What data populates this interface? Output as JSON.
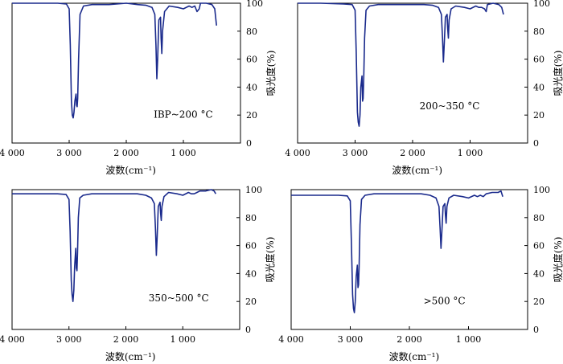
{
  "chart_data": [
    {
      "type": "line",
      "annotation": "IBP~200 °C",
      "xlabel": "波数(cm⁻¹)",
      "ylabel": "吸光度(%)",
      "xlim": [
        4000,
        0
      ],
      "ylim": [
        0,
        100
      ],
      "x_ticks": [
        "4 000",
        "3 000",
        "2 000",
        "1 000"
      ],
      "y_ticks": [
        "0",
        "20",
        "40",
        "60",
        "80",
        "100"
      ],
      "grid": false,
      "color": "#1a2a8c",
      "series": [
        {
          "x": [
            4000,
            3600,
            3200,
            3050,
            3000,
            2980,
            2960,
            2945,
            2930,
            2915,
            2900,
            2880,
            2870,
            2860,
            2850,
            2835,
            2810,
            2750,
            2600,
            2300,
            2000,
            1800,
            1650,
            1550,
            1500,
            1480,
            1465,
            1450,
            1430,
            1400,
            1390,
            1378,
            1365,
            1330,
            1250,
            1100,
            1000,
            900,
            850,
            800,
            760,
            723,
            700,
            600,
            500,
            450,
            420
          ],
          "y": [
            100,
            100,
            100,
            99.5,
            96,
            70,
            30,
            20,
            18,
            22,
            30,
            35,
            27,
            26,
            32,
            60,
            92,
            98,
            99,
            99,
            100,
            99,
            98.5,
            97,
            92,
            70,
            46,
            60,
            88,
            90,
            75,
            64,
            80,
            94,
            98,
            97,
            96,
            98,
            97,
            98,
            94,
            96,
            100,
            100,
            99,
            96,
            84
          ]
        }
      ]
    },
    {
      "type": "line",
      "annotation": "200~350 °C",
      "xlabel": "波数(cm⁻¹)",
      "ylabel": "吸光度(%)",
      "xlim": [
        4000,
        0
      ],
      "ylim": [
        0,
        100
      ],
      "x_ticks": [
        "4 000",
        "3 000",
        "2 000",
        "1 000"
      ],
      "y_ticks": [
        "0",
        "20",
        "40",
        "60",
        "80",
        "100"
      ],
      "grid": false,
      "color": "#1a2a8c",
      "series": [
        {
          "x": [
            4000,
            3600,
            3200,
            3050,
            3000,
            2980,
            2960,
            2945,
            2930,
            2915,
            2900,
            2880,
            2870,
            2860,
            2850,
            2835,
            2810,
            2750,
            2600,
            2300,
            2000,
            1800,
            1650,
            1550,
            1500,
            1480,
            1465,
            1450,
            1430,
            1400,
            1390,
            1378,
            1365,
            1330,
            1250,
            1100,
            1000,
            900,
            850,
            800,
            750,
            720,
            700,
            600,
            500,
            450,
            420
          ],
          "y": [
            100,
            100,
            99.5,
            99,
            95,
            65,
            22,
            15,
            12,
            20,
            40,
            48,
            30,
            32,
            45,
            75,
            95,
            98,
            99,
            99,
            99,
            99,
            98.5,
            97,
            92,
            75,
            58,
            70,
            90,
            92,
            82,
            75,
            88,
            96,
            98,
            97,
            96,
            98,
            97,
            97,
            96,
            94,
            99,
            100,
            99,
            97,
            92
          ]
        }
      ]
    },
    {
      "type": "line",
      "annotation": "350~500 °C",
      "xlabel": "波数(cm⁻¹)",
      "ylabel": "吸光度(%)",
      "xlim": [
        4000,
        0
      ],
      "ylim": [
        0,
        100
      ],
      "x_ticks": [
        "4 000",
        "3 000",
        "2 000",
        "1 000"
      ],
      "y_ticks": [
        "0",
        "20",
        "40",
        "60",
        "80",
        "100"
      ],
      "grid": false,
      "color": "#1a2a8c",
      "series": [
        {
          "x": [
            4000,
            3600,
            3200,
            3050,
            3000,
            2980,
            2960,
            2945,
            2930,
            2915,
            2900,
            2880,
            2870,
            2860,
            2850,
            2835,
            2810,
            2750,
            2600,
            2300,
            2000,
            1800,
            1650,
            1550,
            1500,
            1480,
            1465,
            1450,
            1430,
            1400,
            1390,
            1378,
            1365,
            1330,
            1250,
            1100,
            1000,
            900,
            850,
            800,
            750,
            700,
            600,
            500,
            450,
            420
          ],
          "y": [
            97,
            97,
            97,
            96.5,
            93,
            70,
            35,
            25,
            20,
            28,
            45,
            58,
            44,
            42,
            55,
            80,
            94,
            96,
            97,
            97,
            97,
            97,
            96,
            94,
            90,
            72,
            53,
            66,
            88,
            91,
            83,
            78,
            88,
            95,
            98,
            97,
            96,
            98,
            97,
            97,
            98,
            99,
            99,
            100,
            99,
            97
          ]
        }
      ]
    },
    {
      "type": "line",
      "annotation": ">500 °C",
      "xlabel": "波数(cm⁻¹)",
      "ylabel": "吸光度(%)",
      "xlim": [
        4000,
        0
      ],
      "ylim": [
        0,
        100
      ],
      "x_ticks": [
        "4 000",
        "3 000",
        "2 000",
        "1 000"
      ],
      "y_ticks": [
        "0",
        "20",
        "40",
        "60",
        "80",
        "100"
      ],
      "grid": false,
      "color": "#1a2a8c",
      "series": [
        {
          "x": [
            4000,
            3600,
            3200,
            3050,
            3000,
            2980,
            2960,
            2945,
            2930,
            2915,
            2900,
            2880,
            2870,
            2860,
            2850,
            2835,
            2810,
            2750,
            2600,
            2300,
            2000,
            1800,
            1650,
            1550,
            1500,
            1480,
            1465,
            1450,
            1430,
            1400,
            1390,
            1378,
            1365,
            1330,
            1250,
            1100,
            1000,
            900,
            850,
            800,
            750,
            700,
            600,
            500,
            450,
            420
          ],
          "y": [
            96,
            96,
            96,
            95.5,
            92,
            60,
            25,
            15,
            12,
            20,
            38,
            46,
            30,
            32,
            45,
            75,
            93,
            96,
            97,
            97,
            97,
            97,
            96,
            94,
            88,
            72,
            58,
            70,
            88,
            90,
            82,
            76,
            88,
            94,
            96,
            95,
            94,
            96,
            95,
            96,
            95,
            97,
            98,
            98,
            99,
            95
          ]
        }
      ]
    }
  ]
}
